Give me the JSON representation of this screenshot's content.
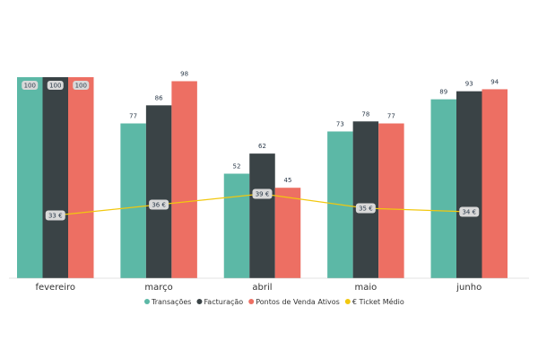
{
  "chart_data": {
    "type": "bar",
    "categories": [
      "fevereiro",
      "março",
      "abril",
      "maio",
      "junho"
    ],
    "series": [
      {
        "name": "Transações",
        "values": [
          100,
          77,
          52,
          73,
          89
        ],
        "color": "#5cb8a6"
      },
      {
        "name": "Facturação",
        "values": [
          100,
          86,
          62,
          78,
          93
        ],
        "color": "#3a4346"
      },
      {
        "name": "Pontos de Venda Ativos",
        "values": [
          100,
          98,
          45,
          77,
          94
        ],
        "color": "#ed6f63"
      }
    ],
    "line_series": {
      "name": "€ Ticket Médio",
      "values": [
        33,
        36,
        39,
        35,
        34
      ],
      "labels": [
        "33 €",
        "36 €",
        "39 €",
        "35 €",
        "34 €"
      ],
      "color": "#f2c80f"
    },
    "ylim": [
      0,
      100
    ],
    "title": "",
    "xlabel": "",
    "ylabel": "",
    "legend_position": "bottom",
    "grid": false
  }
}
